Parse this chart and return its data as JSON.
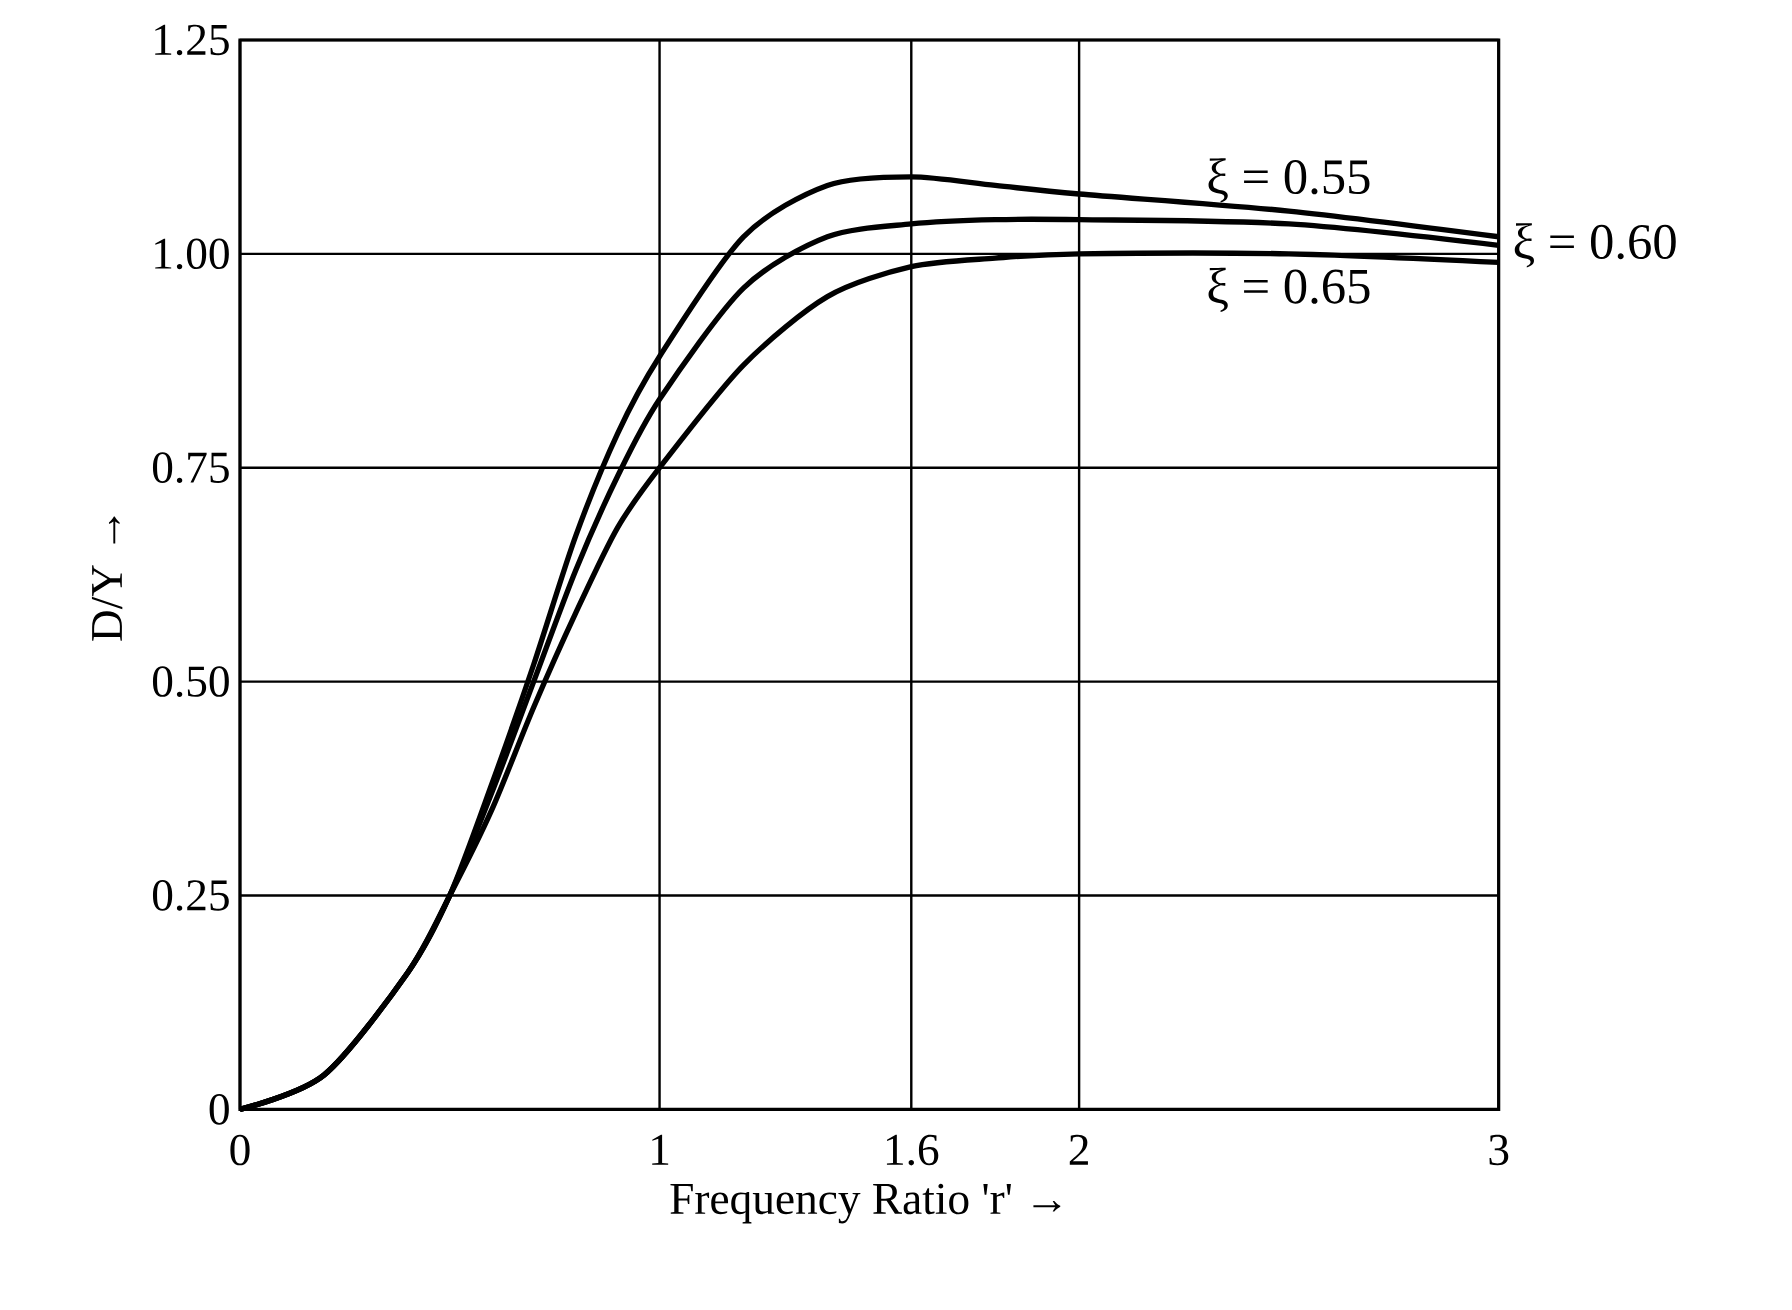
{
  "chart_data": {
    "type": "line",
    "xlabel": "Frequency Ratio 'r' →",
    "ylabel": "D/Y →",
    "x": [
      0,
      0.2,
      0.4,
      0.5,
      0.6,
      0.7,
      0.8,
      0.9,
      1.0,
      1.2,
      1.4,
      1.6,
      1.8,
      2.0,
      2.5,
      3.0
    ],
    "series": [
      {
        "name": "ξ = 0.55",
        "color": "#000000",
        "values": [
          0,
          0.04,
          0.16,
          0.25,
          0.38,
          0.52,
          0.67,
          0.79,
          0.88,
          1.02,
          1.08,
          1.09,
          1.08,
          1.07,
          1.05,
          1.02
        ]
      },
      {
        "name": "ξ = 0.60",
        "color": "#000000",
        "values": [
          0,
          0.04,
          0.16,
          0.25,
          0.37,
          0.5,
          0.63,
          0.74,
          0.83,
          0.96,
          1.02,
          1.035,
          1.04,
          1.04,
          1.035,
          1.01
        ]
      },
      {
        "name": "ξ = 0.65",
        "color": "#000000",
        "values": [
          0,
          0.04,
          0.16,
          0.25,
          0.35,
          0.47,
          0.58,
          0.68,
          0.75,
          0.87,
          0.95,
          0.985,
          0.995,
          1.0,
          1.0,
          0.99
        ]
      }
    ],
    "xlim": [
      0,
      3
    ],
    "ylim": [
      0,
      1.25
    ],
    "xticks": [
      0,
      1,
      1.6,
      2,
      3
    ],
    "yticks": [
      0,
      0.25,
      {
        "value": 0.5,
        "label": "0.50"
      },
      0.75,
      {
        "value": 1,
        "label": "1.00"
      },
      1.25
    ],
    "grid": true,
    "marker": "none",
    "line_style": "solid",
    "legend": false
  }
}
